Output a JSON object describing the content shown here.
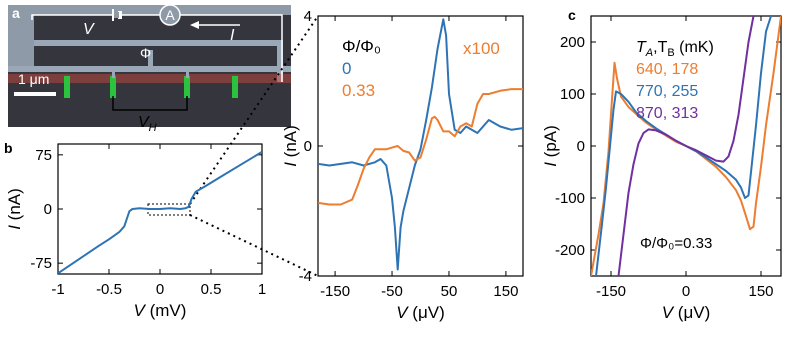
{
  "colors": {
    "blue": "#2e74b5",
    "orange": "#ec7d31",
    "purple": "#7030a0",
    "green": "#2bc23e",
    "sem_bg": "#33343a",
    "sem_metal": "#9aa7b7",
    "sem_red": "#b8473f"
  },
  "panel_a": {
    "label": "a",
    "v_label": "V",
    "ammeter": "A",
    "i_label": "I",
    "phi_label": "Φ",
    "scalebar": "1 μm",
    "vh_label": "V",
    "vh_sub": "H"
  },
  "panel_labels": {
    "b": "b",
    "c": "c"
  },
  "chart_data": [
    {
      "id": "b",
      "type": "line",
      "xlabel": "V (mV)",
      "ylabel": "I (nA)",
      "xlim": [
        -1,
        1
      ],
      "ylim": [
        -90,
        90
      ],
      "xticks": [
        -1,
        -0.5,
        0,
        0.5,
        1
      ],
      "xtick_labels": [
        "-1",
        "-0.5",
        "0",
        "0.5",
        "1"
      ],
      "yticks": [
        -75,
        0,
        75
      ],
      "ytick_labels": [
        "-75",
        "0",
        "75"
      ],
      "grid": false,
      "series": [
        {
          "color": "#2e74b5",
          "x": [
            -1,
            -0.8,
            -0.6,
            -0.5,
            -0.4,
            -0.35,
            -0.3,
            -0.27,
            -0.2,
            -0.1,
            0,
            0.1,
            0.2,
            0.25,
            0.28,
            0.31,
            0.35,
            0.45,
            0.6,
            0.8,
            1
          ],
          "y": [
            -89,
            -70,
            -51,
            -42,
            -32,
            -24,
            -3,
            0,
            1,
            0,
            0,
            1,
            0,
            1,
            3,
            14,
            24,
            32,
            45,
            62,
            79
          ]
        }
      ]
    },
    {
      "id": "middle",
      "type": "line",
      "xlabel": "V (μV)",
      "ylabel": "I (nA)",
      "xlim": [
        -180,
        180
      ],
      "ylim": [
        -4,
        4
      ],
      "xticks": [
        -150,
        -50,
        50,
        150
      ],
      "xtick_labels": [
        "-150",
        "-50",
        "50",
        "150"
      ],
      "yticks": [
        -4,
        0,
        4
      ],
      "ytick_labels": [
        "-4",
        "0",
        "4"
      ],
      "grid": false,
      "legend_title": "Φ/Φ0",
      "annotation": "x100",
      "series": [
        {
          "name": "0",
          "color": "#2e74b5",
          "x": [
            -180,
            -160,
            -140,
            -120,
            -100,
            -80,
            -70,
            -60,
            -50,
            -45,
            -40,
            -35,
            -30,
            -20,
            -10,
            0,
            10,
            20,
            30,
            40,
            45,
            50,
            60,
            70,
            80,
            100,
            120,
            140,
            160,
            180
          ],
          "y": [
            -0.55,
            -0.6,
            -0.55,
            -0.5,
            -0.6,
            -0.5,
            -0.4,
            -0.6,
            -1.6,
            -2.5,
            -3.8,
            -2.5,
            -2.0,
            -1.3,
            -0.6,
            -0.1,
            0.8,
            1.8,
            3.0,
            3.9,
            3.4,
            1.6,
            0.5,
            0.4,
            0.6,
            0.4,
            0.8,
            0.6,
            0.5,
            0.55
          ]
        },
        {
          "name": "0.33",
          "color": "#ec7d31",
          "x": [
            -180,
            -160,
            -140,
            -120,
            -110,
            -100,
            -90,
            -80,
            -70,
            -60,
            -50,
            -40,
            -30,
            -20,
            -10,
            0,
            10,
            20,
            25,
            30,
            40,
            50,
            60,
            70,
            80,
            90,
            100,
            110,
            120,
            140,
            160,
            180
          ],
          "y": [
            -1.75,
            -1.8,
            -1.8,
            -1.65,
            -1.2,
            -0.7,
            -0.35,
            -0.1,
            -0.1,
            -0.1,
            -0.05,
            0.0,
            -0.15,
            -0.2,
            -0.45,
            -0.35,
            0.2,
            0.85,
            0.9,
            0.8,
            0.45,
            0.45,
            0.3,
            0.6,
            0.7,
            0.6,
            1.3,
            1.6,
            1.6,
            1.7,
            1.75,
            1.75
          ]
        }
      ]
    },
    {
      "id": "c",
      "type": "line",
      "xlabel": "V (μV)",
      "ylabel": "I (pA)",
      "xlim": [
        -190,
        190
      ],
      "ylim": [
        -250,
        250
      ],
      "xticks": [
        -150,
        0,
        150
      ],
      "xtick_labels": [
        "-150",
        "0",
        "150"
      ],
      "yticks": [
        -200,
        -100,
        0,
        100,
        200
      ],
      "ytick_labels": [
        "-200",
        "-100",
        "0",
        "100",
        "200"
      ],
      "grid": false,
      "legend_title": "T_A,T_B (mK)",
      "annotation": "Φ/Φ0=0.33",
      "series": [
        {
          "name": "640, 178",
          "ta": "640",
          "tb": "178",
          "color": "#ec7d31",
          "x": [
            -190,
            -175,
            -165,
            -155,
            -148,
            -143,
            -138,
            -130,
            -115,
            -100,
            -80,
            -60,
            -40,
            -20,
            0,
            20,
            40,
            60,
            80,
            100,
            110,
            120,
            128,
            135,
            140,
            150,
            160,
            175,
            190
          ],
          "y": [
            -250,
            -170,
            -110,
            -10,
            90,
            160,
            130,
            95,
            75,
            62,
            45,
            32,
            20,
            8,
            0,
            -10,
            -25,
            -40,
            -60,
            -85,
            -105,
            -135,
            -160,
            -155,
            -110,
            -40,
            40,
            140,
            250
          ]
        },
        {
          "name": "770, 255",
          "ta": "770",
          "tb": "255",
          "color": "#2e74b5",
          "x": [
            -180,
            -168,
            -160,
            -152,
            -145,
            -140,
            -130,
            -115,
            -100,
            -80,
            -60,
            -40,
            -20,
            0,
            20,
            40,
            60,
            80,
            100,
            110,
            118,
            125,
            130,
            140,
            150,
            160,
            170
          ],
          "y": [
            -250,
            -150,
            -80,
            0,
            70,
            105,
            100,
            85,
            65,
            48,
            34,
            22,
            10,
            0,
            -10,
            -22,
            -35,
            -48,
            -65,
            -80,
            -100,
            -95,
            -50,
            40,
            140,
            220,
            250
          ]
        },
        {
          "name": "870, 313",
          "ta": "870",
          "tb": "313",
          "color": "#7030a0",
          "x": [
            -135,
            -125,
            -115,
            -105,
            -95,
            -85,
            -75,
            -60,
            -40,
            -20,
            0,
            20,
            40,
            60,
            75,
            85,
            95,
            105,
            115,
            125,
            135
          ],
          "y": [
            -250,
            -170,
            -90,
            -35,
            5,
            25,
            32,
            30,
            22,
            10,
            0,
            -8,
            -18,
            -28,
            -30,
            -20,
            10,
            60,
            130,
            200,
            250
          ]
        }
      ]
    }
  ]
}
